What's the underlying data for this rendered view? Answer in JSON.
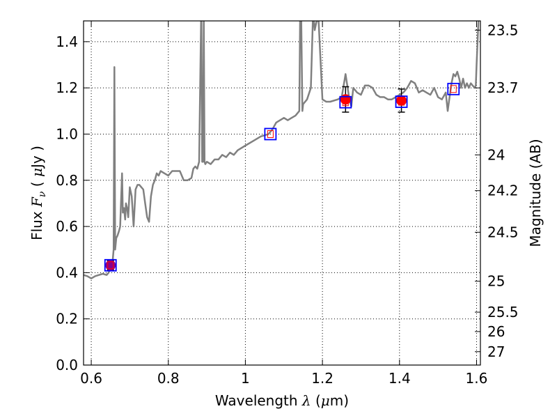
{
  "chart_data": {
    "type": "line",
    "xlabel_parts": [
      "Wavelength  ",
      "λ",
      " (",
      "μ",
      "m)"
    ],
    "ylabel_parts": [
      "Flux  ",
      "F",
      "ν",
      "  ( ",
      "μ",
      "Jy )"
    ],
    "y2label": "Magnitude (AB)",
    "xlim": [
      0.58,
      1.61
    ],
    "ylim": [
      0.0,
      1.49
    ],
    "grid": true,
    "x_ticks": [
      {
        "value": 0.6,
        "label": "0.6"
      },
      {
        "value": 0.8,
        "label": "0.8"
      },
      {
        "value": 1.0,
        "label": "1"
      },
      {
        "value": 1.2,
        "label": "1.2"
      },
      {
        "value": 1.4,
        "label": "1.4"
      },
      {
        "value": 1.6,
        "label": "1.6"
      }
    ],
    "y_ticks": [
      {
        "value": 0.0,
        "label": "0.0"
      },
      {
        "value": 0.2,
        "label": "0.2"
      },
      {
        "value": 0.4,
        "label": "0.4"
      },
      {
        "value": 0.6,
        "label": "0.6"
      },
      {
        "value": 0.8,
        "label": "0.8"
      },
      {
        "value": 1.0,
        "label": "1.0"
      },
      {
        "value": 1.2,
        "label": "1.2"
      },
      {
        "value": 1.4,
        "label": "1.4"
      }
    ],
    "y2_ticks": [
      {
        "flux": 1.45,
        "label": "23.5"
      },
      {
        "flux": 1.2,
        "label": "23.7"
      },
      {
        "flux": 0.91,
        "label": "24"
      },
      {
        "flux": 0.755,
        "label": "24.2"
      },
      {
        "flux": 0.575,
        "label": "24.5"
      },
      {
        "flux": 0.363,
        "label": "25"
      },
      {
        "flux": 0.229,
        "label": "25.5"
      },
      {
        "flux": 0.145,
        "label": "26"
      },
      {
        "flux": 0.058,
        "label": "27"
      }
    ],
    "series": [
      {
        "color": "#808080",
        "x": [
          0.58,
          0.59,
          0.6,
          0.61,
          0.62,
          0.63,
          0.64,
          0.645,
          0.655,
          0.658,
          0.66,
          0.662,
          0.665,
          0.668,
          0.672,
          0.675,
          0.68,
          0.682,
          0.685,
          0.688,
          0.69,
          0.693,
          0.696,
          0.7,
          0.705,
          0.71,
          0.715,
          0.72,
          0.725,
          0.73,
          0.735,
          0.74,
          0.745,
          0.75,
          0.755,
          0.76,
          0.765,
          0.77,
          0.775,
          0.78,
          0.79,
          0.8,
          0.81,
          0.82,
          0.83,
          0.84,
          0.85,
          0.86,
          0.865,
          0.87,
          0.875,
          0.88,
          0.885,
          0.886,
          0.888,
          0.89,
          0.892,
          0.894,
          0.896,
          0.9,
          0.91,
          0.92,
          0.93,
          0.94,
          0.95,
          0.96,
          0.97,
          0.98,
          1.0,
          1.02,
          1.04,
          1.06,
          1.07,
          1.08,
          1.09,
          1.1,
          1.11,
          1.12,
          1.13,
          1.14,
          1.142,
          1.145,
          1.148,
          1.15,
          1.16,
          1.17,
          1.175,
          1.178,
          1.18,
          1.185,
          1.19,
          1.2,
          1.21,
          1.22,
          1.24,
          1.25,
          1.26,
          1.27,
          1.275,
          1.28,
          1.29,
          1.3,
          1.31,
          1.32,
          1.33,
          1.34,
          1.35,
          1.36,
          1.37,
          1.38,
          1.39,
          1.4,
          1.41,
          1.42,
          1.43,
          1.44,
          1.45,
          1.46,
          1.47,
          1.48,
          1.49,
          1.5,
          1.51,
          1.52,
          1.525,
          1.53,
          1.535,
          1.54,
          1.545,
          1.55,
          1.555,
          1.56,
          1.565,
          1.57,
          1.575,
          1.58,
          1.585,
          1.59,
          1.595,
          1.598,
          1.6,
          1.605
        ],
        "y": [
          0.39,
          0.385,
          0.375,
          0.385,
          0.39,
          0.395,
          0.39,
          0.4,
          0.44,
          0.5,
          1.29,
          0.5,
          0.55,
          0.56,
          0.58,
          0.6,
          0.83,
          0.66,
          0.68,
          0.63,
          0.7,
          0.68,
          0.64,
          0.77,
          0.73,
          0.6,
          0.76,
          0.78,
          0.78,
          0.77,
          0.76,
          0.7,
          0.64,
          0.62,
          0.73,
          0.78,
          0.8,
          0.83,
          0.82,
          0.84,
          0.83,
          0.82,
          0.84,
          0.84,
          0.84,
          0.8,
          0.8,
          0.81,
          0.85,
          0.86,
          0.85,
          0.88,
          1.49,
          1.49,
          0.88,
          0.88,
          1.49,
          0.88,
          0.87,
          0.88,
          0.87,
          0.89,
          0.89,
          0.91,
          0.9,
          0.92,
          0.91,
          0.93,
          0.95,
          0.97,
          0.99,
          1.0,
          1.02,
          1.05,
          1.06,
          1.07,
          1.06,
          1.07,
          1.08,
          1.1,
          1.49,
          1.49,
          1.1,
          1.13,
          1.15,
          1.2,
          1.49,
          1.49,
          1.45,
          1.49,
          1.49,
          1.15,
          1.14,
          1.14,
          1.15,
          1.16,
          1.26,
          1.15,
          1.12,
          1.2,
          1.18,
          1.17,
          1.21,
          1.21,
          1.2,
          1.17,
          1.16,
          1.16,
          1.15,
          1.15,
          1.16,
          1.17,
          1.18,
          1.2,
          1.23,
          1.22,
          1.18,
          1.19,
          1.18,
          1.17,
          1.2,
          1.16,
          1.15,
          1.18,
          1.1,
          1.16,
          1.22,
          1.26,
          1.25,
          1.27,
          1.24,
          1.2,
          1.24,
          1.2,
          1.22,
          1.2,
          1.22,
          1.21,
          1.2,
          1.21,
          1.3,
          1.49
        ]
      }
    ],
    "photometry": [
      {
        "x": 0.65,
        "y": 0.432,
        "yerr": 0.02,
        "marker": "purple-circle",
        "color": "#8b008b"
      },
      {
        "x": 1.26,
        "y": 1.15,
        "yerr": 0.055,
        "marker": "red-circle",
        "color": "#ff0000"
      },
      {
        "x": 1.405,
        "y": 1.145,
        "yerr": 0.05,
        "marker": "red-circle",
        "color": "#ff0000"
      }
    ],
    "model_points": [
      {
        "x": 0.65,
        "y": 0.432
      },
      {
        "x": 1.065,
        "y": 1.0
      },
      {
        "x": 1.26,
        "y": 1.138
      },
      {
        "x": 1.405,
        "y": 1.14
      },
      {
        "x": 1.54,
        "y": 1.195
      }
    ],
    "colors": {
      "spectrum": "#808080",
      "model_square": "#0000ff",
      "model_inner": "#ff0000",
      "grid": "#000000"
    }
  }
}
